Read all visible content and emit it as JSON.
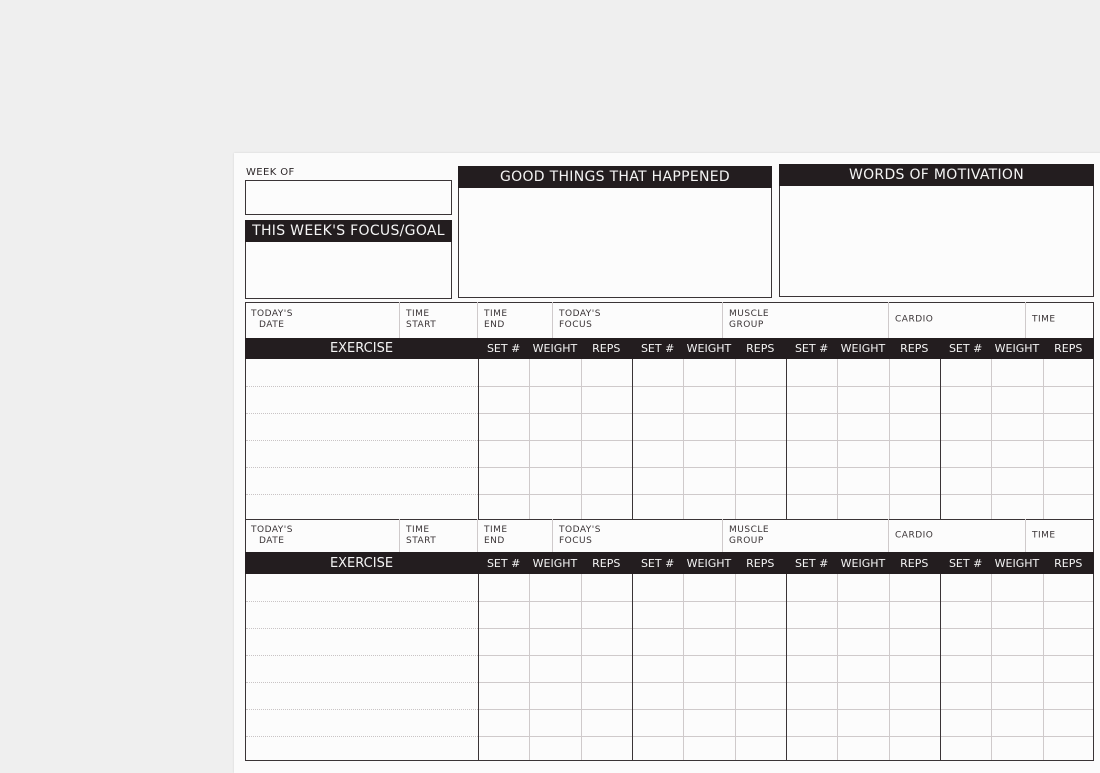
{
  "week_of_label": "WEEK OF",
  "focus_goal_title": "THIS WEEK'S FOCUS/GOAL",
  "good_things_title": "GOOD THINGS THAT HAPPENED",
  "motivation_title": "WORDS OF MOTIVATION",
  "info_row": {
    "todays_date": [
      "TODAY'S",
      "DATE"
    ],
    "time_start": [
      "TIME",
      "START"
    ],
    "time_end": [
      "TIME",
      "END"
    ],
    "todays_focus": [
      "TODAY'S",
      "FOCUS"
    ],
    "muscle_group": [
      "MUSCLE",
      "GROUP"
    ],
    "cardio": "CARDIO",
    "time": "TIME"
  },
  "exercise_header": "EXERCISE",
  "set_columns": [
    "SET #",
    "WEIGHT",
    "REPS"
  ],
  "set_groups": 4,
  "sections": 2,
  "colors": {
    "background": "#efefef",
    "paper": "#fbfbfb",
    "ink": "#231d1f"
  }
}
